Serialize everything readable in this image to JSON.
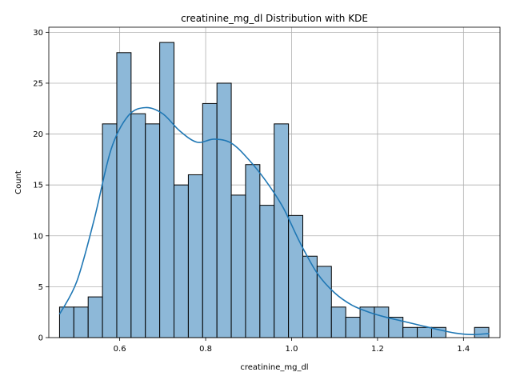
{
  "chart_data": {
    "type": "bar",
    "title": "creatinine_mg_dl Distribution with KDE",
    "xlabel": "creatinine_mg_dl",
    "ylabel": "Count",
    "xlim": [
      0.435,
      1.485
    ],
    "ylim": [
      0,
      30.5
    ],
    "x_ticks": [
      0.6,
      0.8,
      1.0,
      1.2,
      1.4
    ],
    "x_tick_labels": [
      "0.6",
      "0.8",
      "1.0",
      "1.2",
      "1.4"
    ],
    "y_ticks": [
      0,
      5,
      10,
      15,
      20,
      25,
      30
    ],
    "y_tick_labels": [
      "0",
      "5",
      "10",
      "15",
      "20",
      "25",
      "30"
    ],
    "grid": true,
    "bar_color": "#8db8d8",
    "bar_edge_color": "#000000",
    "kde_color": "#1f77b4",
    "bins": {
      "start": 0.46,
      "width": 0.0333,
      "counts": [
        3,
        3,
        4,
        21,
        28,
        22,
        21,
        29,
        15,
        16,
        23,
        25,
        14,
        17,
        13,
        21,
        12,
        8,
        7,
        3,
        2,
        3,
        3,
        2,
        1,
        1,
        1,
        0,
        0,
        1
      ]
    },
    "kde": {
      "x": [
        0.46,
        0.5,
        0.54,
        0.58,
        0.62,
        0.66,
        0.7,
        0.74,
        0.78,
        0.82,
        0.86,
        0.9,
        0.94,
        0.98,
        1.02,
        1.06,
        1.1,
        1.14,
        1.18,
        1.22,
        1.26,
        1.3,
        1.34,
        1.38,
        1.42,
        1.46
      ],
      "y": [
        2.3,
        5.5,
        11.5,
        18.5,
        21.8,
        22.6,
        22.0,
        20.3,
        19.2,
        19.5,
        19.1,
        17.5,
        15.4,
        12.8,
        9.3,
        6.3,
        4.4,
        3.2,
        2.5,
        2.0,
        1.6,
        1.2,
        0.8,
        0.45,
        0.3,
        0.4
      ]
    }
  }
}
